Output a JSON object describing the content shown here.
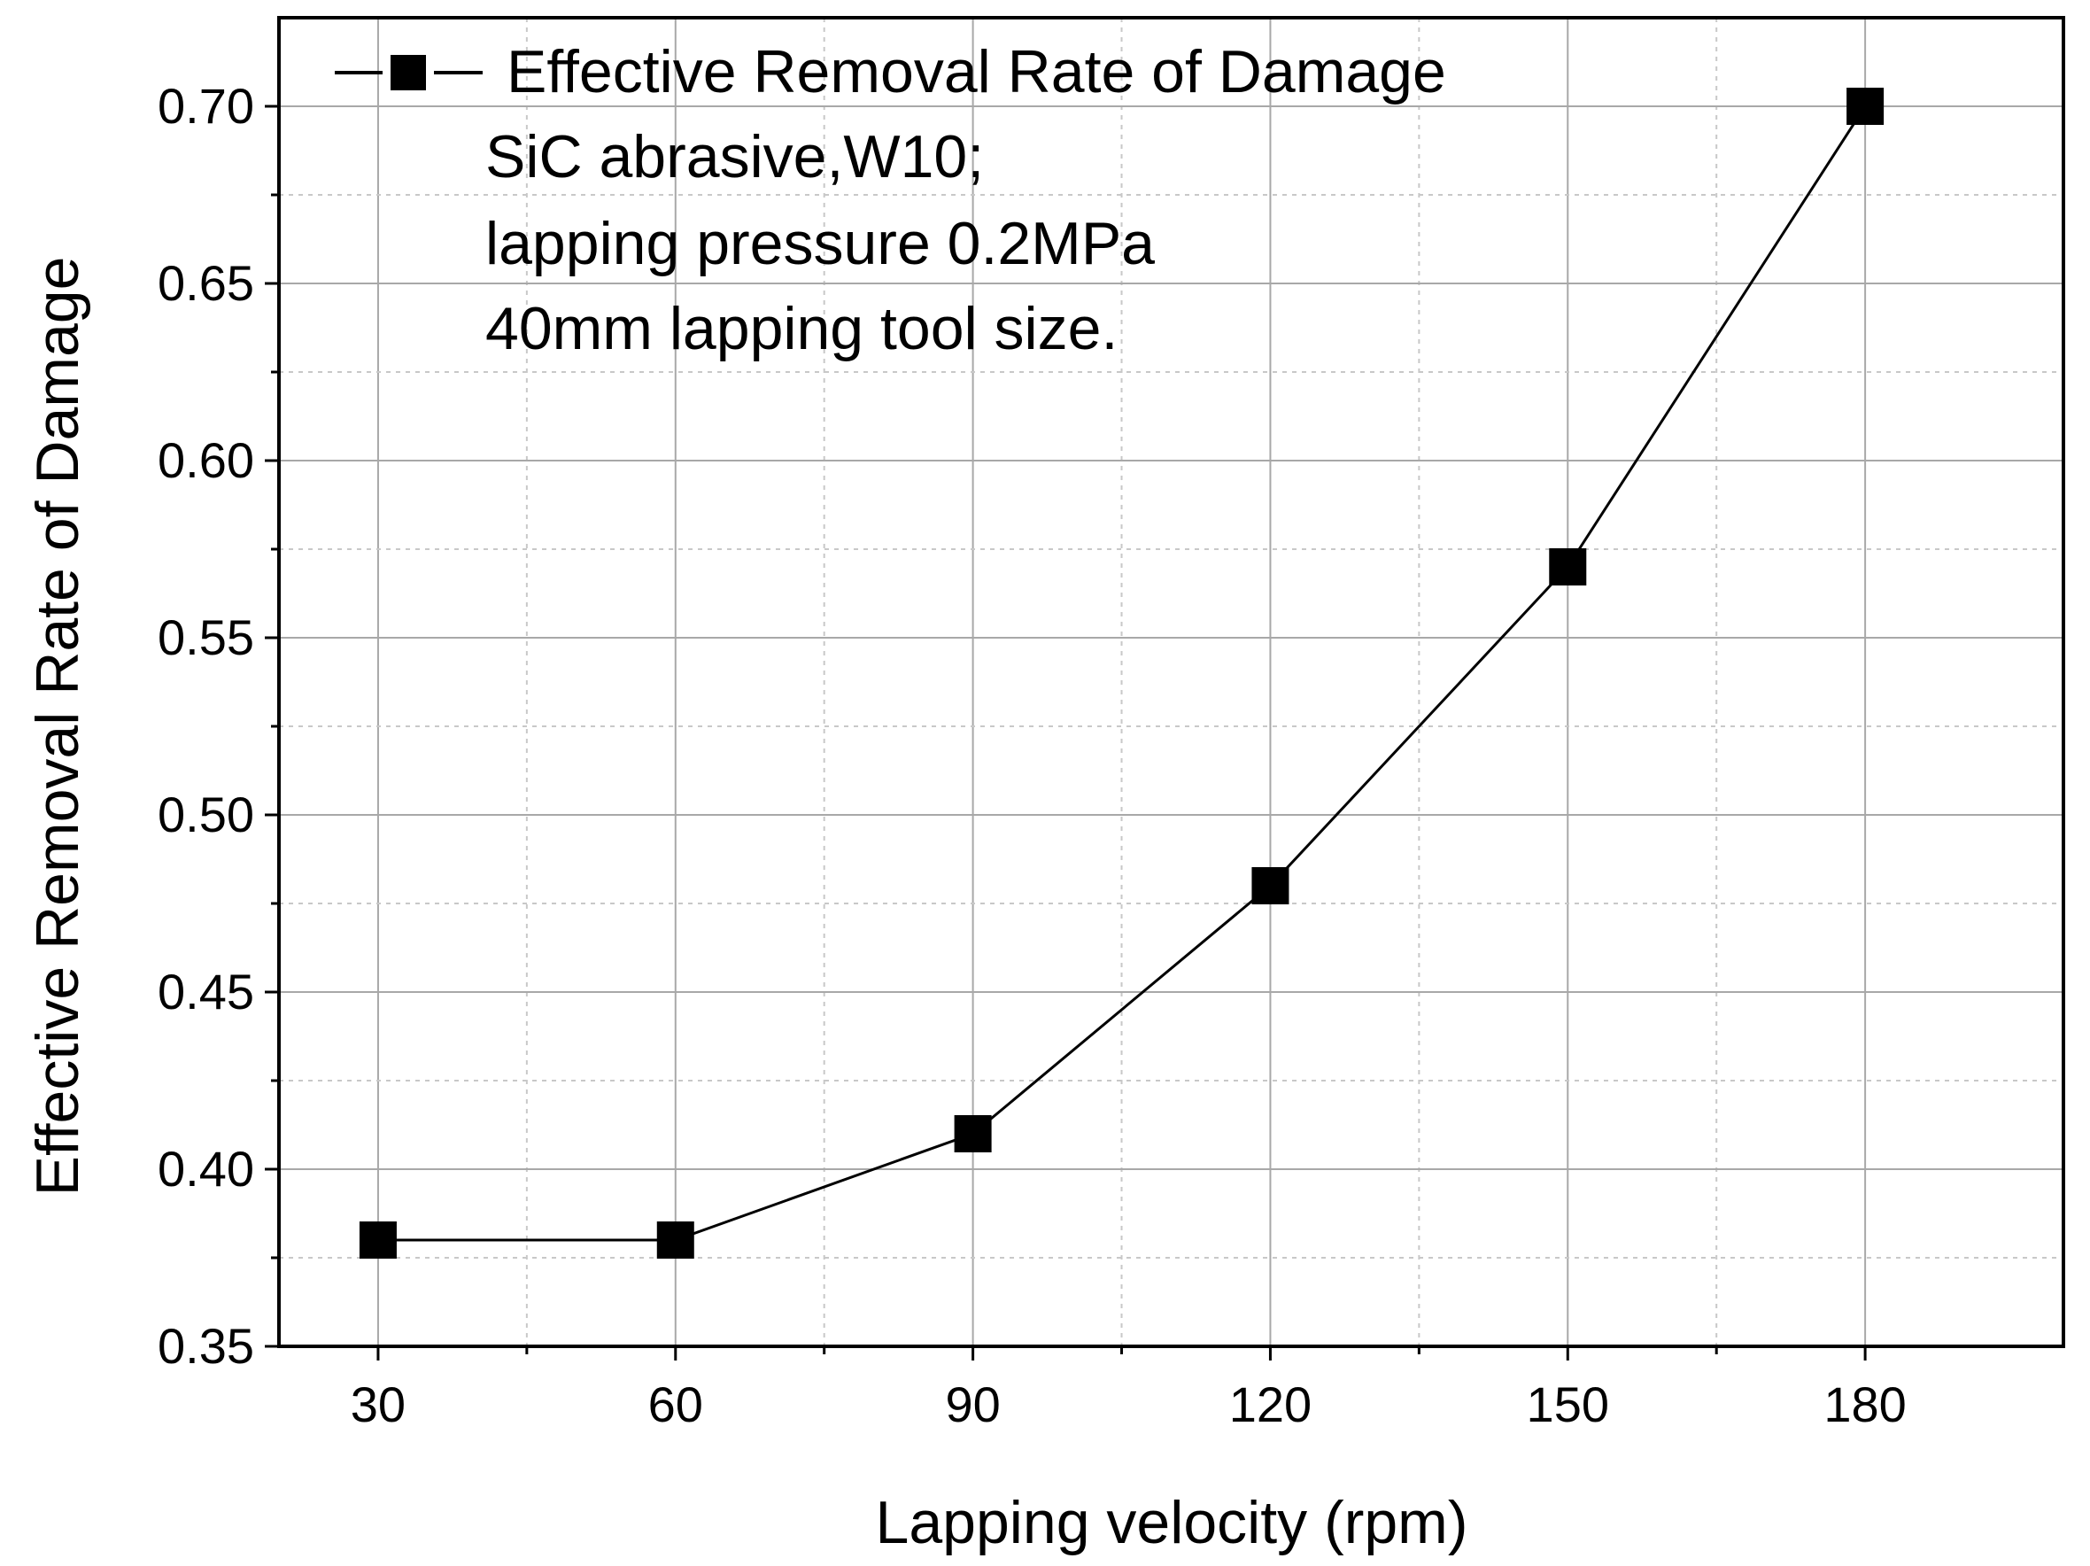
{
  "chart_data": {
    "type": "line",
    "xlabel": "Lapping velocity (rpm)",
    "ylabel": "Effective Removal Rate of Damage",
    "xlim": [
      20,
      200
    ],
    "ylim": [
      0.35,
      0.725
    ],
    "xticks": [
      30,
      60,
      90,
      120,
      150,
      180
    ],
    "xtick_labels": [
      "30",
      "60",
      "90",
      "120",
      "150",
      "180"
    ],
    "yticks": [
      0.35,
      0.4,
      0.45,
      0.5,
      0.55,
      0.6,
      0.65,
      0.7
    ],
    "ytick_labels": [
      "0.35",
      "0.40",
      "0.45",
      "0.50",
      "0.55",
      "0.60",
      "0.65",
      "0.70"
    ],
    "grid": true,
    "legend_position": "top-left",
    "series": [
      {
        "name": "Effective Removal Rate of Damage",
        "marker": "square",
        "color": "#000000",
        "x": [
          30,
          60,
          90,
          120,
          150,
          180
        ],
        "values": [
          0.38,
          0.38,
          0.41,
          0.48,
          0.57,
          0.7
        ]
      }
    ],
    "annotations": [
      "SiC abrasive,W10;",
      "lapping pressure 0.2MPa",
      "40mm lapping tool size."
    ]
  }
}
